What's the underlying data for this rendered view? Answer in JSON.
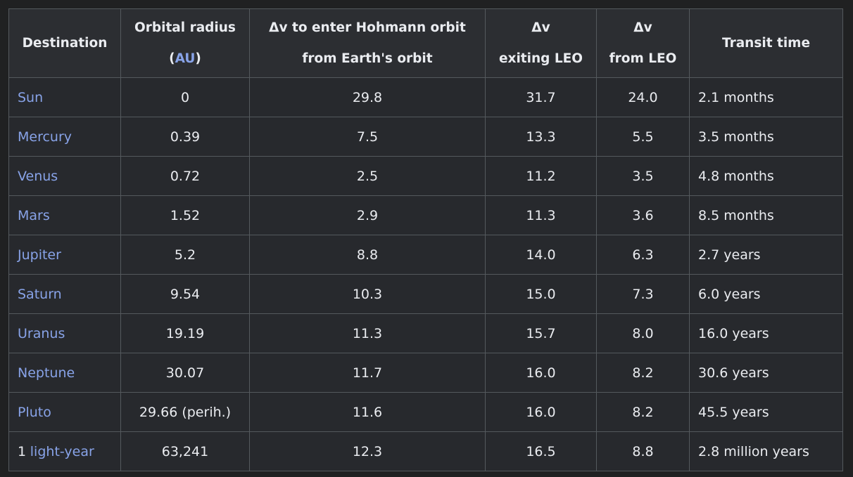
{
  "table": {
    "header": [
      {
        "line1": "Destination"
      },
      {
        "line1": "Orbital radius",
        "prefix": "(",
        "link": "AU",
        "suffix": ")"
      },
      {
        "line1": "Δv to enter Hohmann orbit",
        "line2": "from Earth's orbit"
      },
      {
        "line1": "Δv",
        "line2": "exiting LEO"
      },
      {
        "line1": "Δv",
        "line2": "from LEO"
      },
      {
        "line1": "Transit time"
      }
    ],
    "rows": [
      [
        {
          "link": "Sun"
        },
        "0",
        "29.8",
        "31.7",
        "24.0",
        "2.1 months"
      ],
      [
        {
          "link": "Mercury"
        },
        "0.39",
        "7.5",
        "13.3",
        "5.5",
        "3.5 months"
      ],
      [
        {
          "link": "Venus"
        },
        "0.72",
        "2.5",
        "11.2",
        "3.5",
        "4.8 months"
      ],
      [
        {
          "link": "Mars"
        },
        "1.52",
        "2.9",
        "11.3",
        "3.6",
        "8.5 months"
      ],
      [
        {
          "link": "Jupiter"
        },
        "5.2",
        "8.8",
        "14.0",
        "6.3",
        "2.7 years"
      ],
      [
        {
          "link": "Saturn"
        },
        "9.54",
        "10.3",
        "15.0",
        "7.3",
        "6.0 years"
      ],
      [
        {
          "link": "Uranus"
        },
        "19.19",
        "11.3",
        "15.7",
        "8.0",
        "16.0 years"
      ],
      [
        {
          "link": "Neptune"
        },
        "30.07",
        "11.7",
        "16.0",
        "8.2",
        "30.6 years"
      ],
      [
        {
          "link": "Pluto"
        },
        "29.66 (perih.)",
        "11.6",
        "16.0",
        "8.2",
        "45.5 years"
      ],
      [
        {
          "prefix": "1",
          "link": "light-year"
        },
        "63,241",
        "12.3",
        "16.5",
        "8.8",
        "2.8 million years"
      ]
    ]
  }
}
